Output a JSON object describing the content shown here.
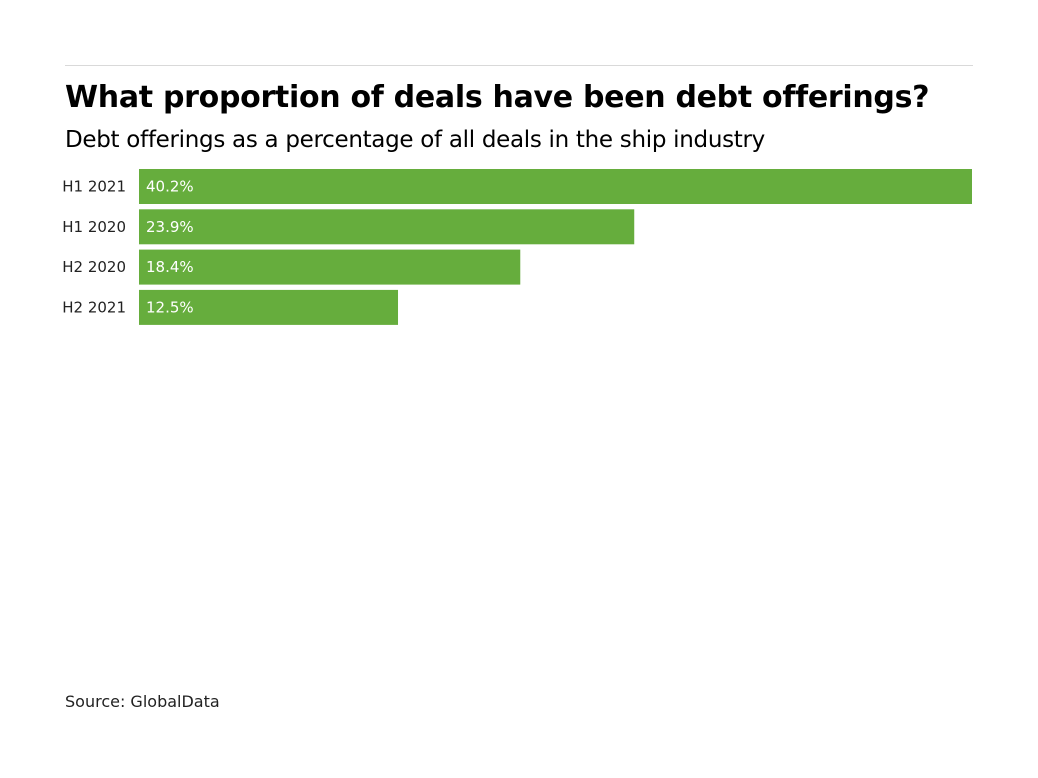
{
  "title": "What proportion of deals have been debt offerings?",
  "subtitle": "Debt offerings as a percentage of all deals in the ship industry",
  "source": "Source: GlobalData",
  "colors": {
    "bar": "#66ad3d",
    "bar_label": "#ffffff",
    "category_label": "#222222"
  },
  "chart_data": {
    "type": "bar",
    "orientation": "horizontal",
    "categories": [
      "H1 2021",
      "H1 2020",
      "H2 2020",
      "H2 2021"
    ],
    "values": [
      40.2,
      23.9,
      18.4,
      12.5
    ],
    "value_labels": [
      "40.2%",
      "23.9%",
      "18.4%",
      "12.5%"
    ],
    "title": "What proportion of deals have been debt offerings?",
    "subtitle": "Debt offerings as a percentage of all deals in the ship industry",
    "xlim": [
      0,
      40.2
    ],
    "grid": false,
    "legend": "none"
  }
}
